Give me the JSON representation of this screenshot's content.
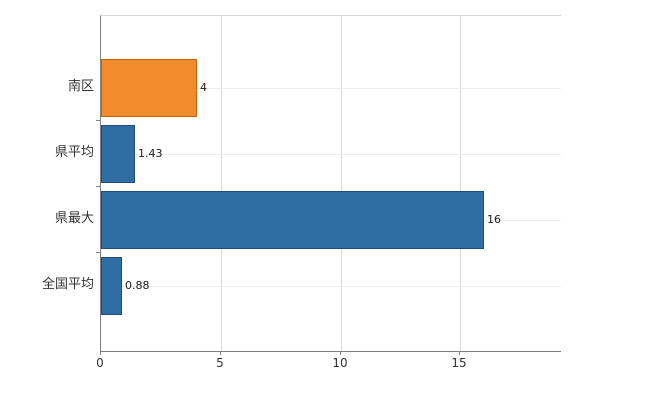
{
  "chart_data": {
    "type": "bar",
    "orientation": "horizontal",
    "title": "",
    "xlabel": "",
    "ylabel": "",
    "categories": [
      "南区",
      "県平均",
      "県最大",
      "全国平均"
    ],
    "values": [
      4,
      1.43,
      16,
      0.88
    ],
    "value_labels": [
      "4",
      "1.43",
      "16",
      "0.88"
    ],
    "bar_colors": [
      "#F28B2B",
      "#2F6DA4",
      "#2F6DA4",
      "#2F6DA4"
    ],
    "bar_border_colors": [
      "#C06712",
      "#1F4E79",
      "#1F4E79",
      "#1F4E79"
    ],
    "xlim": [
      0,
      19.2
    ],
    "x_ticks": [
      0,
      5,
      10,
      15
    ],
    "x_tick_labels": [
      "0",
      "5",
      "10",
      "15"
    ],
    "grid": "vertical",
    "legend": "none",
    "background_color": "#FFFFFF",
    "axis_color": "#808080"
  }
}
